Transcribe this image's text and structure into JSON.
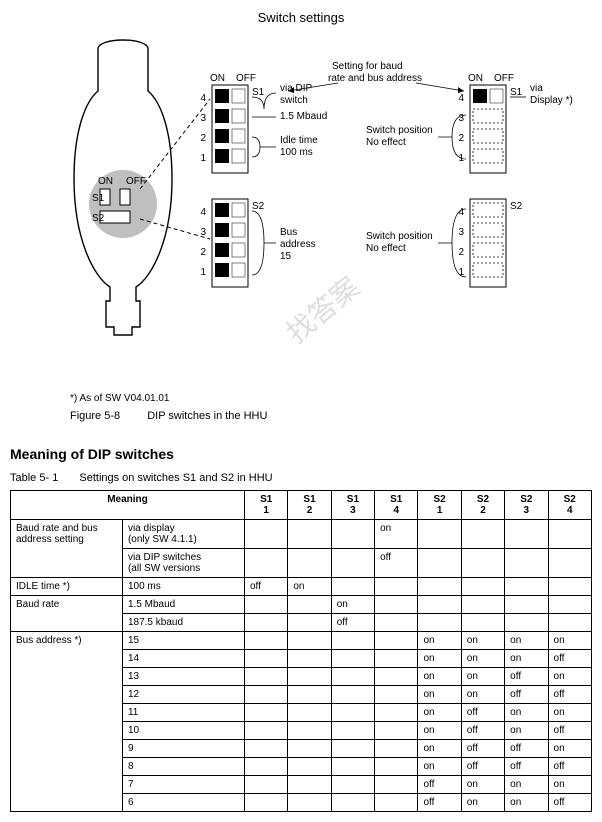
{
  "diagram": {
    "title": "Switch settings",
    "on": "ON",
    "off": "OFF",
    "s1": "S1",
    "s2": "S2",
    "nums": {
      "n1": "1",
      "n2": "2",
      "n3": "3",
      "n4": "4"
    },
    "labels": {
      "setting_for": "Setting for baud",
      "setting_for2": "rate and bus address",
      "via_dip": "via DIP",
      "via_dip2": "switch",
      "mbaud": "1.5 Mbaud",
      "idle1": "Idle time",
      "idle2": "100 ms",
      "bus1": "Bus",
      "bus2": "address",
      "bus3": "15",
      "via_display": "via",
      "via_display2": "Display *)",
      "swpos1": "Switch position",
      "swpos2": "No effect"
    },
    "footnote": "*) As of SW V04.01.01",
    "caption_num": "Figure 5-8",
    "caption_text": "DIP switches in the HHU"
  },
  "section_title": "Meaning of DIP switches",
  "table": {
    "caption_num": "Table 5- 1",
    "caption_text": "Settings on switches S1 and S2 in HHU",
    "header_meaning": "Meaning",
    "cols": [
      "S1\n1",
      "S1\n2",
      "S1\n3",
      "S1\n4",
      "S2\n1",
      "S2\n2",
      "S2\n3",
      "S2\n4"
    ],
    "rows": [
      {
        "rowhead": "Baud rate and bus address setting",
        "rowspan": 2,
        "sub": "via display\n(only SW 4.1.1)",
        "v": [
          "",
          "",
          "",
          "on",
          "",
          "",
          "",
          ""
        ]
      },
      {
        "sub": "via DIP switches\n(all SW versions",
        "v": [
          "",
          "",
          "",
          "off",
          "",
          "",
          "",
          ""
        ]
      },
      {
        "rowhead": "IDLE time *)",
        "rowspan": 1,
        "sub": "100 ms",
        "v": [
          "off",
          "on",
          "",
          "",
          "",
          "",
          "",
          ""
        ]
      },
      {
        "rowhead": "Baud rate",
        "rowspan": 2,
        "sub": "1.5 Mbaud",
        "v": [
          "",
          "",
          "on",
          "",
          "",
          "",
          "",
          ""
        ]
      },
      {
        "sub": "187.5 kbaud",
        "v": [
          "",
          "",
          "off",
          "",
          "",
          "",
          "",
          ""
        ]
      },
      {
        "rowhead": "Bus address *)",
        "rowspan": 10,
        "sub": "15",
        "v": [
          "",
          "",
          "",
          "",
          "on",
          "on",
          "on",
          "on"
        ]
      },
      {
        "sub": "14",
        "v": [
          "",
          "",
          "",
          "",
          "on",
          "on",
          "on",
          "off"
        ]
      },
      {
        "sub": "13",
        "v": [
          "",
          "",
          "",
          "",
          "on",
          "on",
          "off",
          "on"
        ]
      },
      {
        "sub": "12",
        "v": [
          "",
          "",
          "",
          "",
          "on",
          "on",
          "off",
          "off"
        ]
      },
      {
        "sub": "11",
        "v": [
          "",
          "",
          "",
          "",
          "on",
          "off",
          "on",
          "on"
        ]
      },
      {
        "sub": "10",
        "v": [
          "",
          "",
          "",
          "",
          "on",
          "off",
          "on",
          "off"
        ]
      },
      {
        "sub": "9",
        "v": [
          "",
          "",
          "",
          "",
          "on",
          "off",
          "off",
          "on"
        ]
      },
      {
        "sub": "8",
        "v": [
          "",
          "",
          "",
          "",
          "on",
          "off",
          "off",
          "off"
        ]
      },
      {
        "sub": "7",
        "v": [
          "",
          "",
          "",
          "",
          "off",
          "on",
          "on",
          "on"
        ]
      },
      {
        "sub": "6",
        "v": [
          "",
          "",
          "",
          "",
          "off",
          "on",
          "on",
          "off"
        ]
      }
    ]
  },
  "style": {
    "dip_fill": "#000",
    "dip_off_fill": "#fff",
    "stroke": "#000",
    "gray_circle": "#bfbfbf",
    "watermark_color": "#ddd"
  }
}
